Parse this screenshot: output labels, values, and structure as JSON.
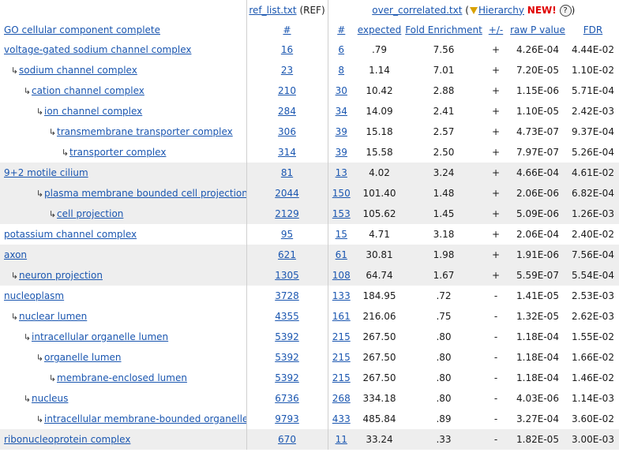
{
  "header": {
    "ref_list_link": "ref_list.txt",
    "ref_suffix": "(REF)",
    "over_link": "over_correlated.txt",
    "open_paren": "(",
    "hierarchy_link": "Hierarchy",
    "new_badge": "NEW!",
    "help": "?",
    "close_paren": ")"
  },
  "columns": {
    "term": "GO cellular component complete",
    "ref_count": "#",
    "count": "#",
    "expected": "expected",
    "fold": "Fold Enrichment",
    "sign": "+/-",
    "raw_p": "raw P value",
    "fdr": "FDR"
  },
  "rows": [
    {
      "term": "voltage-gated sodium channel complex",
      "level": 0,
      "ref": "16",
      "num": "6",
      "expected": ".79",
      "fold": "7.56",
      "sign": "+",
      "raw_p": "4.26E-04",
      "fdr": "4.44E-02",
      "shade": false
    },
    {
      "term": "sodium channel complex",
      "level": 1,
      "ref": "23",
      "num": "8",
      "expected": "1.14",
      "fold": "7.01",
      "sign": "+",
      "raw_p": "7.20E-05",
      "fdr": "1.10E-02",
      "shade": false
    },
    {
      "term": "cation channel complex",
      "level": 2,
      "ref": "210",
      "num": "30",
      "expected": "10.42",
      "fold": "2.88",
      "sign": "+",
      "raw_p": "1.15E-06",
      "fdr": "5.71E-04",
      "shade": false
    },
    {
      "term": "ion channel complex",
      "level": 3,
      "ref": "284",
      "num": "34",
      "expected": "14.09",
      "fold": "2.41",
      "sign": "+",
      "raw_p": "1.10E-05",
      "fdr": "2.42E-03",
      "shade": false
    },
    {
      "term": "transmembrane transporter complex",
      "level": 4,
      "ref": "306",
      "num": "39",
      "expected": "15.18",
      "fold": "2.57",
      "sign": "+",
      "raw_p": "4.73E-07",
      "fdr": "9.37E-04",
      "shade": false
    },
    {
      "term": "transporter complex",
      "level": 5,
      "ref": "314",
      "num": "39",
      "expected": "15.58",
      "fold": "2.50",
      "sign": "+",
      "raw_p": "7.97E-07",
      "fdr": "5.26E-04",
      "shade": false
    },
    {
      "term": "9+2 motile cilium",
      "level": 0,
      "ref": "81",
      "num": "13",
      "expected": "4.02",
      "fold": "3.24",
      "sign": "+",
      "raw_p": "4.66E-04",
      "fdr": "4.61E-02",
      "shade": true
    },
    {
      "term": "plasma membrane bounded cell projection",
      "level": 3,
      "ref": "2044",
      "num": "150",
      "expected": "101.40",
      "fold": "1.48",
      "sign": "+",
      "raw_p": "2.06E-06",
      "fdr": "6.82E-04",
      "shade": true
    },
    {
      "term": "cell projection",
      "level": 4,
      "ref": "2129",
      "num": "153",
      "expected": "105.62",
      "fold": "1.45",
      "sign": "+",
      "raw_p": "5.09E-06",
      "fdr": "1.26E-03",
      "shade": true
    },
    {
      "term": "potassium channel complex",
      "level": 0,
      "ref": "95",
      "num": "15",
      "expected": "4.71",
      "fold": "3.18",
      "sign": "+",
      "raw_p": "2.06E-04",
      "fdr": "2.40E-02",
      "shade": false
    },
    {
      "term": "axon",
      "level": 0,
      "ref": "621",
      "num": "61",
      "expected": "30.81",
      "fold": "1.98",
      "sign": "+",
      "raw_p": "1.91E-06",
      "fdr": "7.56E-04",
      "shade": true
    },
    {
      "term": "neuron projection",
      "level": 1,
      "ref": "1305",
      "num": "108",
      "expected": "64.74",
      "fold": "1.67",
      "sign": "+",
      "raw_p": "5.59E-07",
      "fdr": "5.54E-04",
      "shade": true
    },
    {
      "term": "nucleoplasm",
      "level": 0,
      "ref": "3728",
      "num": "133",
      "expected": "184.95",
      "fold": ".72",
      "sign": "-",
      "raw_p": "1.41E-05",
      "fdr": "2.53E-03",
      "shade": false
    },
    {
      "term": "nuclear lumen",
      "level": 1,
      "ref": "4355",
      "num": "161",
      "expected": "216.06",
      "fold": ".75",
      "sign": "-",
      "raw_p": "1.32E-05",
      "fdr": "2.62E-03",
      "shade": false
    },
    {
      "term": "intracellular organelle lumen",
      "level": 2,
      "ref": "5392",
      "num": "215",
      "expected": "267.50",
      "fold": ".80",
      "sign": "-",
      "raw_p": "1.18E-04",
      "fdr": "1.55E-02",
      "shade": false
    },
    {
      "term": "organelle lumen",
      "level": 3,
      "ref": "5392",
      "num": "215",
      "expected": "267.50",
      "fold": ".80",
      "sign": "-",
      "raw_p": "1.18E-04",
      "fdr": "1.66E-02",
      "shade": false
    },
    {
      "term": "membrane-enclosed lumen",
      "level": 4,
      "ref": "5392",
      "num": "215",
      "expected": "267.50",
      "fold": ".80",
      "sign": "-",
      "raw_p": "1.18E-04",
      "fdr": "1.46E-02",
      "shade": false
    },
    {
      "term": "nucleus",
      "level": 2,
      "ref": "6736",
      "num": "268",
      "expected": "334.18",
      "fold": ".80",
      "sign": "-",
      "raw_p": "4.03E-06",
      "fdr": "1.14E-03",
      "shade": false
    },
    {
      "term": "intracellular membrane-bounded organelle",
      "level": 3,
      "ref": "9793",
      "num": "433",
      "expected": "485.84",
      "fold": ".89",
      "sign": "-",
      "raw_p": "3.27E-04",
      "fdr": "3.60E-02",
      "shade": false
    },
    {
      "term": "ribonucleoprotein complex",
      "level": 0,
      "ref": "670",
      "num": "11",
      "expected": "33.24",
      "fold": ".33",
      "sign": "-",
      "raw_p": "1.82E-05",
      "fdr": "3.00E-03",
      "shade": true
    }
  ]
}
